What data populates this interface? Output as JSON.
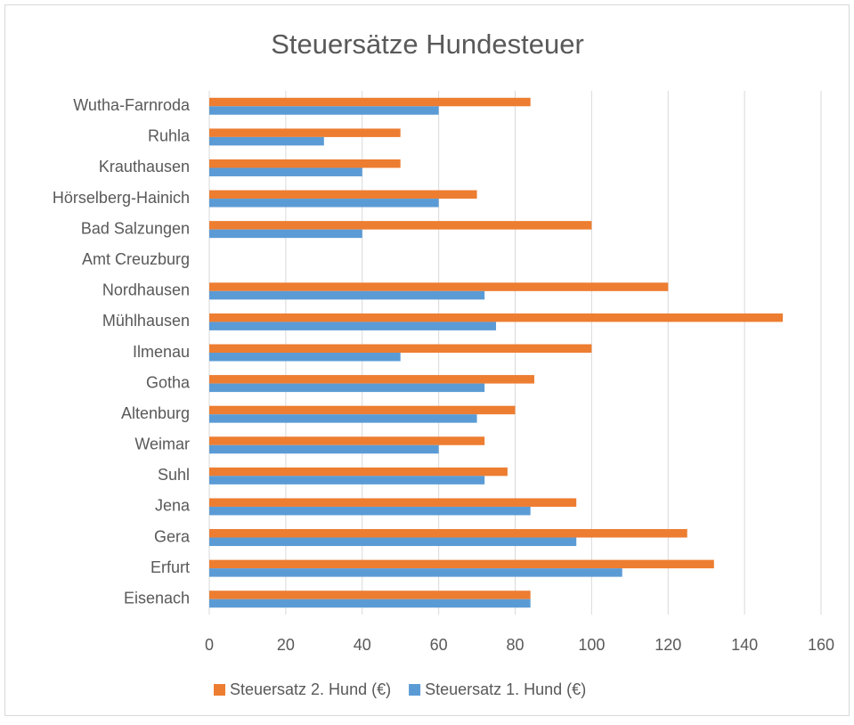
{
  "chart_data": {
    "type": "bar",
    "orientation": "horizontal",
    "title": "Steuersätze Hundesteuer",
    "categories": [
      "Eisenach",
      "Erfurt",
      "Gera",
      "Jena",
      "Suhl",
      "Weimar",
      "Altenburg",
      "Gotha",
      "Ilmenau",
      "Mühlhausen",
      "Nordhausen",
      "Amt Creuzburg",
      "Bad Salzungen",
      "Hörselberg-Hainich",
      "Krauthausen",
      "Ruhla",
      "Wutha-Farnroda"
    ],
    "series": [
      {
        "name": "Steuersatz 2. Hund (€)",
        "color": "#ed7d31",
        "values": [
          84,
          132,
          125,
          96,
          78,
          72,
          80,
          85,
          100,
          150,
          120,
          null,
          100,
          70,
          50,
          50,
          84
        ]
      },
      {
        "name": "Steuersatz 1. Hund (€)",
        "color": "#5b9bd5",
        "values": [
          84,
          108,
          96,
          84,
          72,
          60,
          70,
          72,
          50,
          75,
          72,
          null,
          40,
          60,
          40,
          30,
          60
        ]
      }
    ],
    "xlim": [
      0,
      160
    ],
    "xticks": [
      0,
      20,
      40,
      60,
      80,
      100,
      120,
      140,
      160
    ],
    "grid": true,
    "legend": "bottom"
  }
}
